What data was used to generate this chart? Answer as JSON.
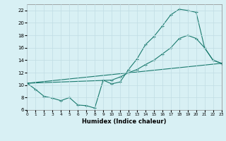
{
  "xlabel": "Humidex (Indice chaleur)",
  "bg_color": "#d8f0f4",
  "line_color": "#1a7a6e",
  "grid_color": "#c0dde4",
  "xlim": [
    0,
    23
  ],
  "ylim": [
    6,
    23
  ],
  "xticks": [
    0,
    1,
    2,
    3,
    4,
    5,
    6,
    7,
    8,
    9,
    10,
    11,
    12,
    13,
    14,
    15,
    16,
    17,
    18,
    19,
    20,
    21,
    22,
    23
  ],
  "yticks": [
    6,
    8,
    10,
    12,
    14,
    16,
    18,
    20,
    22
  ],
  "line1_x": [
    0,
    1,
    2,
    3,
    4,
    5,
    6,
    7,
    8,
    9,
    10,
    11,
    12,
    13,
    14,
    15,
    16,
    17,
    18,
    19,
    20,
    21,
    22,
    23
  ],
  "line1_y": [
    10.3,
    9.3,
    8.2,
    7.9,
    7.5,
    8.0,
    6.8,
    6.7,
    6.3,
    10.8,
    10.2,
    10.5,
    12.5,
    14.2,
    16.5,
    17.8,
    19.5,
    21.3,
    22.2,
    22.0,
    21.7,
    16.0,
    14.0,
    13.5
  ],
  "line2_x": [
    0,
    23
  ],
  "line2_y": [
    10.3,
    13.5
  ],
  "line3_x": [
    0,
    10,
    11,
    12,
    13,
    14,
    15,
    16,
    17,
    18,
    19,
    20,
    21,
    22,
    23
  ],
  "line3_y": [
    10.3,
    10.8,
    11.3,
    12.0,
    12.5,
    13.3,
    14.0,
    15.0,
    16.0,
    17.5,
    18.0,
    17.5,
    16.0,
    14.0,
    13.5
  ]
}
